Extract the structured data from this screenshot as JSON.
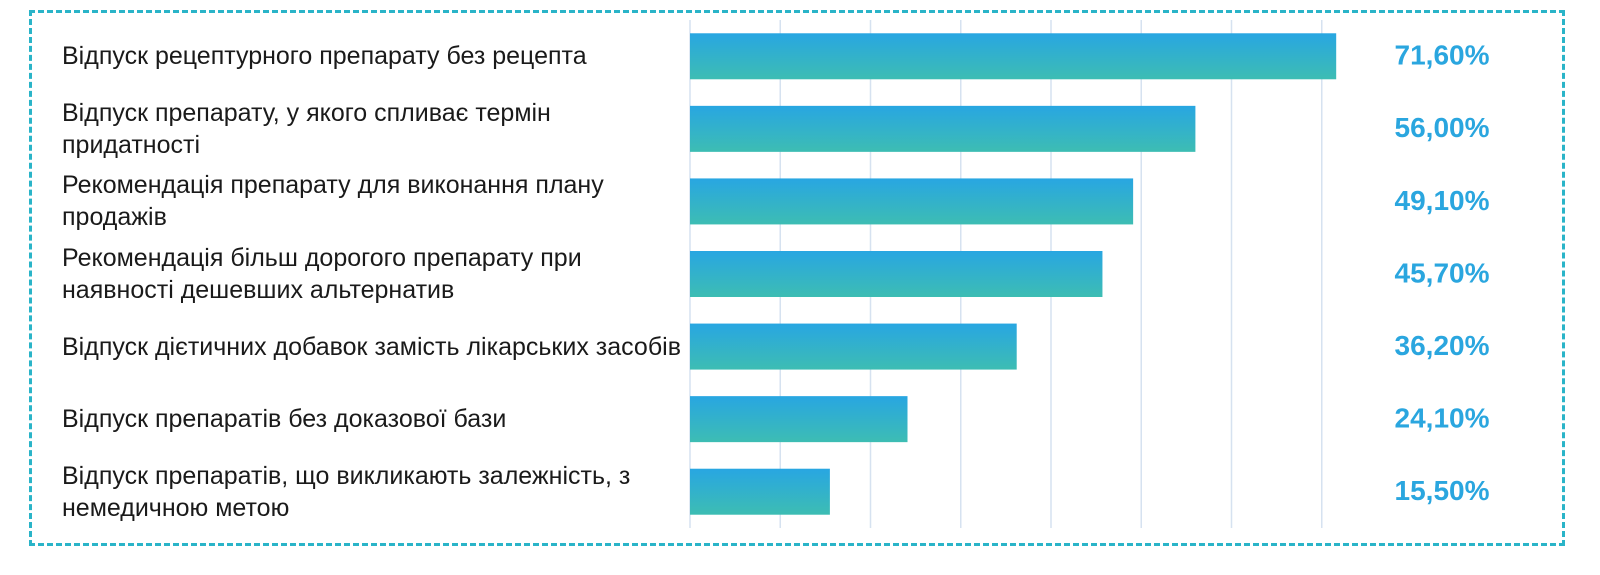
{
  "chart_data": {
    "type": "bar",
    "orientation": "horizontal",
    "categories": [
      "Відпуск рецептурного препарату без рецепта",
      "Відпуск препарату, у якого спливає термін придатності",
      "Рекомендація препарату для виконання плану продажів",
      "Рекомендація більш дорогого препарату при наявності дешевших альтернатив",
      "Відпуск дієтичних добавок замість лікарських засобів",
      "Відпуск препаратів без доказової бази",
      "Відпуск препаратів, що викликають залежність, з немедичною метою"
    ],
    "values": [
      71.6,
      56.0,
      49.1,
      45.7,
      36.2,
      24.1,
      15.5
    ],
    "value_labels": [
      "71,60%",
      "56,00%",
      "49,10%",
      "45,70%",
      "36,20%",
      "24,10%",
      "15,50%"
    ],
    "color": "#29aadf",
    "xlim": [
      0,
      80
    ],
    "xticks": [
      0,
      10,
      20,
      30,
      40,
      50,
      60,
      70
    ],
    "grid": true
  }
}
